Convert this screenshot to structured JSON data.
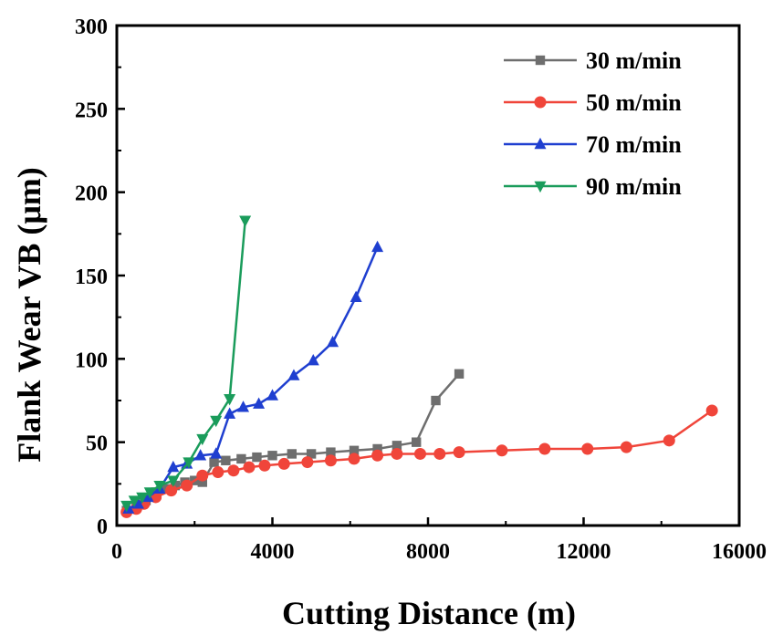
{
  "chart_data": {
    "type": "line",
    "title": "",
    "xlabel": "Cutting Distance (m)",
    "ylabel": "Flank Wear VB (μm)",
    "xlim": [
      0,
      16000
    ],
    "ylim": [
      0,
      300
    ],
    "xticks": [
      0,
      4000,
      8000,
      12000,
      16000
    ],
    "yticks": [
      0,
      50,
      100,
      150,
      200,
      250,
      300
    ],
    "x_tick_labels": [
      "0",
      "4000",
      "8000",
      "12000",
      "16000"
    ],
    "y_tick_labels": [
      "0",
      "50",
      "100",
      "150",
      "200",
      "250",
      "300"
    ],
    "grid": false,
    "legend_position": "top-right",
    "series": [
      {
        "name": "30 m/min",
        "color": "#6e6e6e",
        "marker": "square",
        "points": [
          [
            250,
            9
          ],
          [
            500,
            12
          ],
          [
            750,
            15
          ],
          [
            1000,
            20
          ],
          [
            1250,
            22
          ],
          [
            1500,
            24
          ],
          [
            1750,
            26
          ],
          [
            2000,
            27
          ],
          [
            2200,
            26
          ],
          [
            2500,
            38
          ],
          [
            2800,
            39
          ],
          [
            3200,
            40
          ],
          [
            3600,
            41
          ],
          [
            4000,
            42
          ],
          [
            4500,
            43
          ],
          [
            5000,
            43
          ],
          [
            5500,
            44
          ],
          [
            6100,
            45
          ],
          [
            6700,
            46
          ],
          [
            7200,
            48
          ],
          [
            7700,
            50
          ],
          [
            8200,
            75
          ],
          [
            8800,
            91
          ]
        ]
      },
      {
        "name": "50 m/min",
        "color": "#f0453a",
        "marker": "circle",
        "points": [
          [
            250,
            8
          ],
          [
            500,
            10
          ],
          [
            700,
            13
          ],
          [
            1000,
            17
          ],
          [
            1400,
            21
          ],
          [
            1800,
            24
          ],
          [
            2200,
            30
          ],
          [
            2600,
            32
          ],
          [
            3000,
            33
          ],
          [
            3400,
            35
          ],
          [
            3800,
            36
          ],
          [
            4300,
            37
          ],
          [
            4900,
            38
          ],
          [
            5500,
            39
          ],
          [
            6100,
            40
          ],
          [
            6700,
            42
          ],
          [
            7200,
            43
          ],
          [
            7800,
            43
          ],
          [
            8300,
            43
          ],
          [
            8800,
            44
          ],
          [
            9900,
            45
          ],
          [
            11000,
            46
          ],
          [
            12100,
            46
          ],
          [
            13100,
            47
          ],
          [
            14200,
            51
          ],
          [
            15300,
            69
          ]
        ]
      },
      {
        "name": "70 m/min",
        "color": "#1f3fd0",
        "marker": "triangle-up",
        "points": [
          [
            300,
            10
          ],
          [
            550,
            13
          ],
          [
            800,
            17
          ],
          [
            1100,
            22
          ],
          [
            1450,
            35
          ],
          [
            1800,
            37
          ],
          [
            2150,
            42
          ],
          [
            2550,
            43
          ],
          [
            2900,
            67
          ],
          [
            3250,
            71
          ],
          [
            3650,
            73
          ],
          [
            4000,
            78
          ],
          [
            4550,
            90
          ],
          [
            5050,
            99
          ],
          [
            5550,
            110
          ],
          [
            6150,
            137
          ],
          [
            6700,
            167
          ]
        ]
      },
      {
        "name": "90 m/min",
        "color": "#1a9c5b",
        "marker": "triangle-down",
        "points": [
          [
            250,
            12
          ],
          [
            450,
            15
          ],
          [
            650,
            17
          ],
          [
            850,
            20
          ],
          [
            1100,
            24
          ],
          [
            1450,
            27
          ],
          [
            1850,
            38
          ],
          [
            2200,
            52
          ],
          [
            2550,
            63
          ],
          [
            2900,
            76
          ],
          [
            3300,
            183
          ]
        ]
      }
    ]
  }
}
